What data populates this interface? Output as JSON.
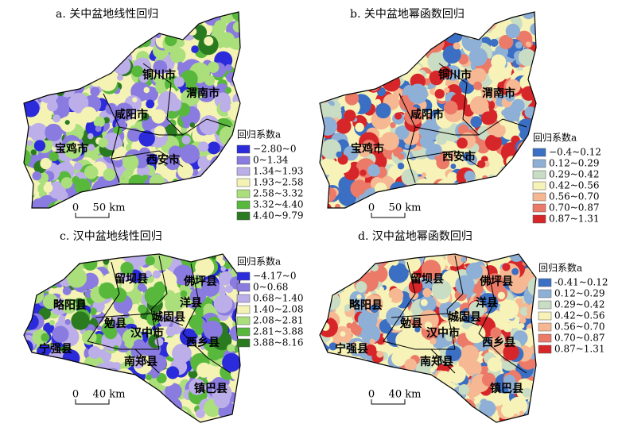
{
  "panels": [
    {
      "title": "a. 关中盆地线性回归",
      "legend_title": "回归系数a",
      "legend": [
        {
          "label": "−2.80~0",
          "color": "#2b2bdb"
        },
        {
          "label": "0~1.34",
          "color": "#8a7be0"
        },
        {
          "label": "1.34~1.93",
          "color": "#bcaee8"
        },
        {
          "label": "1.93~2.58",
          "color": "#f4f3b4"
        },
        {
          "label": "2.58~3.32",
          "color": "#aadf7c"
        },
        {
          "label": "3.32~4.40",
          "color": "#57b83c"
        },
        {
          "label": "4.40~9.79",
          "color": "#2a7a20"
        }
      ],
      "places": [
        "铜川市",
        "渭南市",
        "咸阳市",
        "宝鸡市",
        "西安市"
      ],
      "scale": [
        "0",
        "50 km"
      ]
    },
    {
      "title": "b. 关中盆地幂函数回归",
      "legend_title": "回归系数a",
      "legend": [
        {
          "label": "−0.4~0.12",
          "color": "#3a6fc4"
        },
        {
          "label": "0.12~0.29",
          "color": "#8eb0d6"
        },
        {
          "label": "0.29~0.42",
          "color": "#c9dcc4"
        },
        {
          "label": "0.42~0.56",
          "color": "#f7f3b8"
        },
        {
          "label": "0.56~0.70",
          "color": "#f6b892"
        },
        {
          "label": "0.70~0.87",
          "color": "#ec7a68"
        },
        {
          "label": "0.87~1.31",
          "color": "#d7262a"
        }
      ],
      "places": [
        "铜川市",
        "渭南市",
        "咸阳市",
        "宝鸡市",
        "西安市"
      ],
      "scale": [
        "0",
        "50 km"
      ]
    },
    {
      "title": "c. 汉中盆地线性回归",
      "legend_title": "回归系数a",
      "legend": [
        {
          "label": "−4.17~0",
          "color": "#2b2bdb"
        },
        {
          "label": "0~0.68",
          "color": "#8a7be0"
        },
        {
          "label": "0.68~1.40",
          "color": "#bcaee8"
        },
        {
          "label": "1.40~2.08",
          "color": "#f4f3b4"
        },
        {
          "label": "2.08~2.81",
          "color": "#aadf7c"
        },
        {
          "label": "2.81~3.88",
          "color": "#57b83c"
        },
        {
          "label": "3.88~8.16",
          "color": "#2a7a20"
        }
      ],
      "places": [
        "留坝县",
        "佛坪县",
        "略阳县",
        "洋县",
        "勉县",
        "城固县",
        "汉中市",
        "宁强县",
        "西乡县",
        "南郑县",
        "镇巴县"
      ],
      "scale": [
        "0",
        "40 km"
      ]
    },
    {
      "title": "d. 汉中盆地幂函数回归",
      "legend_title": "回归系数a",
      "legend": [
        {
          "label": "-0.41~0.12",
          "color": "#3a6fc4"
        },
        {
          "label": "0.12~0.29",
          "color": "#8eb0d6"
        },
        {
          "label": "0.29~0.42",
          "color": "#c9dcc4"
        },
        {
          "label": "0.42~0.56",
          "color": "#f7f3b8"
        },
        {
          "label": "0.56~0.70",
          "color": "#f6b892"
        },
        {
          "label": "0.70~0.87",
          "color": "#ec7a68"
        },
        {
          "label": "0.87~1.31",
          "color": "#d7262a"
        }
      ],
      "places": [
        "留坝县",
        "佛坪县",
        "略阳县",
        "洋县",
        "勉县",
        "城固县",
        "汉中市",
        "宁强县",
        "西乡县",
        "南郑县",
        "镇巴县"
      ],
      "scale": [
        "0",
        "40 km"
      ]
    }
  ]
}
